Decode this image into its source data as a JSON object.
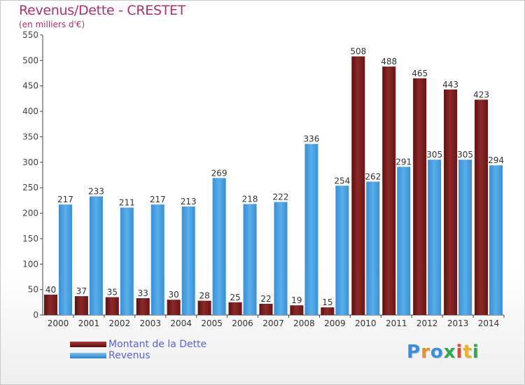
{
  "title": "Revenus/Dette - CRESTET",
  "subtitle": "(en milliers d'€)",
  "logo": {
    "text": "Proxiti",
    "colors": [
      "#3a8fd8",
      "#e8912a",
      "#3a8fd8",
      "#2eaa4c",
      "#d84a3a",
      "#e8b22a",
      "#2eaa4c"
    ]
  },
  "legend": [
    {
      "label": "Montant de la Dette",
      "color": "#7a1c1c"
    },
    {
      "label": "Revenus",
      "color": "#4aa0e2"
    }
  ],
  "chart_data": {
    "type": "bar",
    "title": "Revenus/Dette - CRESTET",
    "ylabel": "(en milliers d'€)",
    "xlabel": "",
    "categories": [
      "2000",
      "2001",
      "2002",
      "2003",
      "2004",
      "2005",
      "2006",
      "2007",
      "2008",
      "2009",
      "2010",
      "2011",
      "2012",
      "2013",
      "2014"
    ],
    "series": [
      {
        "name": "Montant de la Dette",
        "color": "#7a1c1c",
        "values": [
          40,
          37,
          35,
          33,
          30,
          28,
          25,
          22,
          19,
          15,
          508,
          488,
          465,
          443,
          423
        ]
      },
      {
        "name": "Revenus",
        "color": "#4aa0e2",
        "values": [
          217,
          233,
          211,
          217,
          213,
          269,
          218,
          222,
          336,
          254,
          262,
          291,
          305,
          305,
          294
        ]
      }
    ],
    "ylim": [
      0,
      550
    ],
    "yticks": [
      0,
      50,
      100,
      150,
      200,
      250,
      300,
      350,
      400,
      450,
      500,
      550
    ],
    "grid": false
  }
}
